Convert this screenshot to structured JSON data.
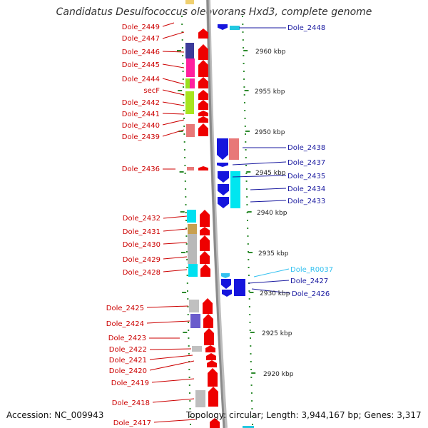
{
  "title": "Candidatus Desulfococcus oleovorans Hxd3, complete genome",
  "accession": "Accession: NC_009943",
  "genome_info": "Topology: circular; Length: 3,944,167 bp; Genes: 3,317",
  "colors": {
    "left_label": "#cc0000",
    "right_label": "#1a1aa0",
    "rna_label": "#33c1f0",
    "tick": "#2e8b2e",
    "backbone": "#8a8a8a"
  },
  "scale_labels": [
    "2960 kbp",
    "2955 kbp",
    "2950 kbp",
    "2945 kbp",
    "2940 kbp",
    "2935 kbp",
    "2930 kbp",
    "2925 kbp",
    "2920 kbp"
  ],
  "left_genes": [
    "Dole_2449",
    "Dole_2447",
    "Dole_2446",
    "Dole_2445",
    "Dole_2444",
    "secF",
    "Dole_2442",
    "Dole_2441",
    "Dole_2440",
    "Dole_2439",
    "Dole_2436",
    "Dole_2432",
    "Dole_2431",
    "Dole_2430",
    "Dole_2429",
    "Dole_2428",
    "Dole_2425",
    "Dole_2424",
    "Dole_2423",
    "Dole_2422",
    "Dole_2421",
    "Dole_2420",
    "Dole_2419",
    "Dole_2418",
    "Dole_2417"
  ],
  "right_genes": [
    "Dole_2448",
    "Dole_2438",
    "Dole_2437",
    "Dole_2435",
    "Dole_2434",
    "Dole_2433",
    "Dole_R0037",
    "Dole_2427",
    "Dole_2426"
  ]
}
